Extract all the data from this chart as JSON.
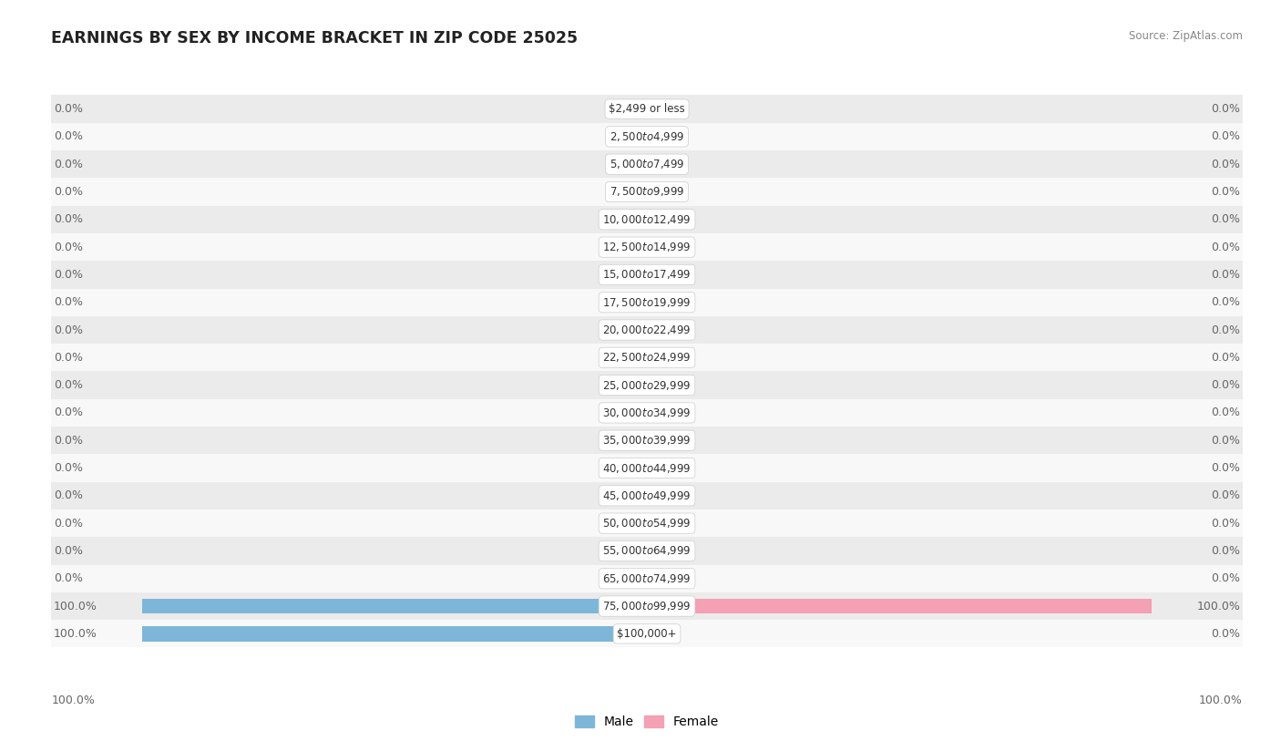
{
  "title": "EARNINGS BY SEX BY INCOME BRACKET IN ZIP CODE 25025",
  "source": "Source: ZipAtlas.com",
  "categories": [
    "$2,499 or less",
    "$2,500 to $4,999",
    "$5,000 to $7,499",
    "$7,500 to $9,999",
    "$10,000 to $12,499",
    "$12,500 to $14,999",
    "$15,000 to $17,499",
    "$17,500 to $19,999",
    "$20,000 to $22,499",
    "$22,500 to $24,999",
    "$25,000 to $29,999",
    "$30,000 to $34,999",
    "$35,000 to $39,999",
    "$40,000 to $44,999",
    "$45,000 to $49,999",
    "$50,000 to $54,999",
    "$55,000 to $64,999",
    "$65,000 to $74,999",
    "$75,000 to $99,999",
    "$100,000+"
  ],
  "male_values": [
    0.0,
    0.0,
    0.0,
    0.0,
    0.0,
    0.0,
    0.0,
    0.0,
    0.0,
    0.0,
    0.0,
    0.0,
    0.0,
    0.0,
    0.0,
    0.0,
    0.0,
    0.0,
    100.0,
    100.0
  ],
  "female_values": [
    0.0,
    0.0,
    0.0,
    0.0,
    0.0,
    0.0,
    0.0,
    0.0,
    0.0,
    0.0,
    0.0,
    0.0,
    0.0,
    0.0,
    0.0,
    0.0,
    0.0,
    0.0,
    100.0,
    0.0
  ],
  "male_color": "#7EB6D9",
  "female_color": "#F4A0B5",
  "row_bg_color_light": "#EBEBEB",
  "row_bg_color_white": "#F8F8F8",
  "label_color": "#666666",
  "title_color": "#222222",
  "source_color": "#888888",
  "max_value": 100.0,
  "bar_height": 0.55,
  "stub_size": 3.5,
  "label_fontsize": 9.0,
  "title_fontsize": 12.5,
  "source_fontsize": 8.5,
  "cat_fontsize": 8.5
}
